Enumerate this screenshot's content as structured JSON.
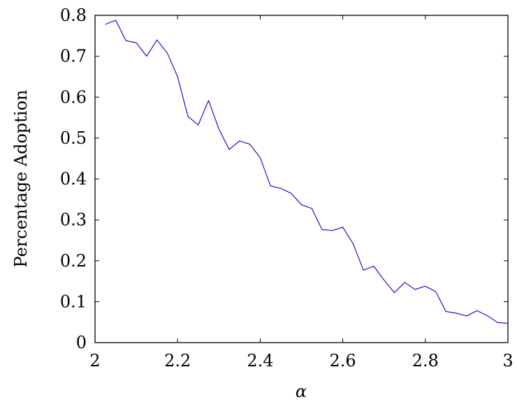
{
  "chart_data": {
    "type": "line",
    "title": "",
    "xlabel": "α",
    "ylabel": "Percentage Adoption",
    "xlim": [
      2,
      3
    ],
    "ylim": [
      0,
      0.8
    ],
    "xticks": [
      2,
      2.2,
      2.4,
      2.6,
      2.8,
      3
    ],
    "yticks": [
      0,
      0.1,
      0.2,
      0.3,
      0.4,
      0.5,
      0.6,
      0.7,
      0.8
    ],
    "xtick_labels": [
      "2",
      "2.2",
      "2.4",
      "2.6",
      "2.8",
      "3"
    ],
    "ytick_labels": [
      "0",
      "0.1",
      "0.2",
      "0.3",
      "0.4",
      "0.5",
      "0.6",
      "0.7",
      "0.8"
    ],
    "grid": false,
    "legend": "none",
    "series": [
      {
        "color": "#0000cc",
        "x": [
          2.025,
          2.05,
          2.075,
          2.1,
          2.125,
          2.15,
          2.175,
          2.2,
          2.225,
          2.25,
          2.275,
          2.3,
          2.325,
          2.35,
          2.375,
          2.4,
          2.425,
          2.45,
          2.475,
          2.5,
          2.525,
          2.55,
          2.575,
          2.6,
          2.625,
          2.65,
          2.675,
          2.7,
          2.725,
          2.75,
          2.775,
          2.8,
          2.825,
          2.85,
          2.875,
          2.9,
          2.925,
          2.95,
          2.975,
          3.0
        ],
        "y": [
          0.778,
          0.788,
          0.738,
          0.733,
          0.7,
          0.74,
          0.708,
          0.65,
          0.553,
          0.532,
          0.592,
          0.522,
          0.472,
          0.493,
          0.485,
          0.452,
          0.383,
          0.377,
          0.365,
          0.337,
          0.328,
          0.276,
          0.274,
          0.282,
          0.242,
          0.177,
          0.187,
          0.153,
          0.122,
          0.147,
          0.13,
          0.138,
          0.125,
          0.076,
          0.072,
          0.065,
          0.078,
          0.066,
          0.049,
          0.047
        ]
      }
    ]
  }
}
